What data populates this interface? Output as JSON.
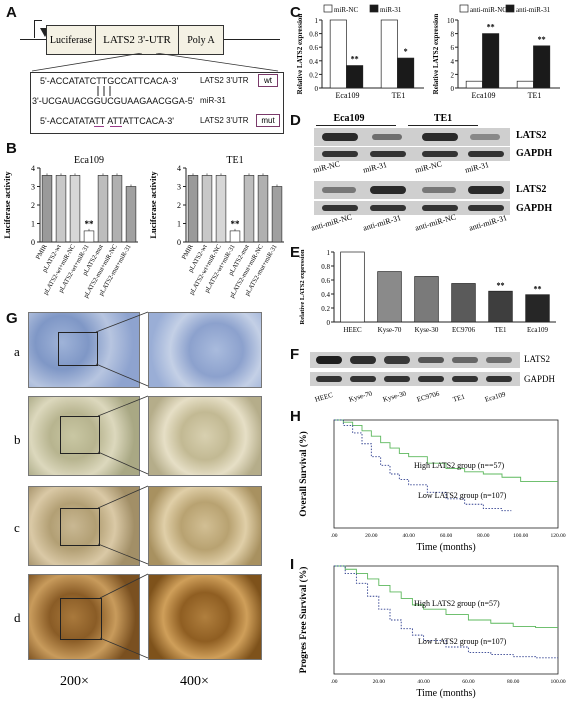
{
  "panels": {
    "A": {
      "letter": "A",
      "segments": [
        "Luciferase",
        "LATS2  3'-UTR",
        "Poly A"
      ],
      "seq_lines": [
        {
          "text": "5'-ACCATATCTTGCCATTCACA-3'",
          "tag": "LATS2 3'UTR",
          "box": "wt"
        },
        {
          "text": "3'-UCGAUACGGUCGUAAGAACGGA-5'",
          "tag": "miR-31",
          "box": ""
        },
        {
          "text": "5'-ACCATATATT ATTATTCACA-3'",
          "tag": "LATS2 3'UTR",
          "box": "mut"
        }
      ]
    },
    "B": {
      "letter": "B"
    },
    "C": {
      "letter": "C"
    },
    "D": {
      "letter": "D",
      "top_title_left": "Eca109",
      "top_title_right": "TE1",
      "top_labels": [
        "miR-NC",
        "miR-31",
        "miR-NC",
        "miR-31"
      ],
      "bottom_labels": [
        "anti-miR-NC",
        "anti-miR-31",
        "anti-miR-NC",
        "anti-miR-31"
      ],
      "bands": [
        "LATS2",
        "GAPDH",
        "LATS2",
        "GAPDH"
      ]
    },
    "E": {
      "letter": "E"
    },
    "F": {
      "letter": "F",
      "bands": [
        "LATS2",
        "GAPDH"
      ],
      "lanes": [
        "HEEC",
        "Kyse-70",
        "Kyse-30",
        "EC9706",
        "TE1",
        "Eca109"
      ]
    },
    "G": {
      "letter": "G",
      "rows": [
        "a",
        "b",
        "c",
        "d"
      ],
      "magnifications": [
        "200×",
        "400×"
      ]
    },
    "H": {
      "letter": "H"
    },
    "I": {
      "letter": "I"
    }
  },
  "colors": {
    "dark_bar": "#1a1a1a",
    "white_bar": "#ffffff",
    "grey_bar": "#808080",
    "green_curve": "#5cb85c",
    "navy_curve": "#2f3f8f"
  },
  "chart_data": [
    {
      "id": "B-Eca109",
      "type": "bar",
      "title": "Eca109",
      "ylabel": "Luciferase activity",
      "ylim": [
        0,
        4
      ],
      "yticks": [
        "0",
        "1",
        "2",
        "3",
        "4"
      ],
      "categories": [
        "PMIR",
        "pLATS2-wt",
        "pLATS2-wt+miR-NC",
        "pLATS2-wt+miR-31",
        "pLATS2-mut",
        "pLATS2-mut+miR-NC",
        "pLATS2-mut+miR-31"
      ],
      "values": [
        3.6,
        3.6,
        3.6,
        0.6,
        3.6,
        3.6,
        3.0
      ],
      "annotations": [
        {
          "category": "pLATS2-wt+miR-31",
          "text": "**"
        }
      ]
    },
    {
      "id": "B-TE1",
      "type": "bar",
      "title": "TE1",
      "ylabel": "Luciferase activity",
      "ylim": [
        0,
        4
      ],
      "yticks": [
        "0",
        "1",
        "2",
        "3",
        "4"
      ],
      "categories": [
        "PMIR",
        "pLATS2-wt",
        "pLATS2-wt+miR-NC",
        "pLATS2-wt+miR-31",
        "pLATS2-mut",
        "pLATS2-mut+miR-NC",
        "pLATS2-mut+miR-31"
      ],
      "values": [
        3.6,
        3.6,
        3.6,
        0.6,
        3.6,
        3.6,
        3.0
      ],
      "annotations": [
        {
          "category": "pLATS2-wt+miR-31",
          "text": "**"
        }
      ]
    },
    {
      "id": "C-left",
      "type": "bar",
      "ylabel": "Relative LATS2 expression",
      "ylim": [
        0,
        1.0
      ],
      "yticks": [
        "0",
        "0.2",
        "0.4",
        "0.6",
        "0.8",
        "1"
      ],
      "categories": [
        "Eca109",
        "TE1"
      ],
      "series": [
        {
          "name": "miR-NC",
          "values": [
            1.0,
            1.0
          ]
        },
        {
          "name": "miR-31",
          "values": [
            0.33,
            0.44
          ]
        }
      ],
      "annotations": [
        {
          "category": "Eca109",
          "text": "**"
        },
        {
          "category": "TE1",
          "text": "*"
        }
      ]
    },
    {
      "id": "C-right",
      "type": "bar",
      "ylabel": "Relative LATS2 expression",
      "ylim": [
        0,
        10
      ],
      "yticks": [
        "0",
        "2",
        "4",
        "6",
        "8",
        "10"
      ],
      "categories": [
        "Eca109",
        "TE1"
      ],
      "series": [
        {
          "name": "anti-miR-NC",
          "values": [
            1.0,
            1.0
          ]
        },
        {
          "name": "anti-miR-31",
          "values": [
            8.0,
            6.2
          ]
        }
      ],
      "annotations": [
        {
          "category": "Eca109",
          "text": "**"
        },
        {
          "category": "TE1",
          "text": "**"
        }
      ]
    },
    {
      "id": "E",
      "type": "bar",
      "ylabel": "Relative LATS2 expression",
      "ylim": [
        0,
        1
      ],
      "yticks": [
        "0",
        "0.2",
        "0.4",
        "0.6",
        "0.8",
        "1"
      ],
      "categories": [
        "HEEC",
        "Kyse-70",
        "Kyse-30",
        "EC9706",
        "TE1",
        "Eca109"
      ],
      "values": [
        1.0,
        0.72,
        0.65,
        0.55,
        0.44,
        0.39
      ],
      "annotations": [
        {
          "category": "TE1",
          "text": "**"
        },
        {
          "category": "Eca109",
          "text": "**"
        }
      ]
    },
    {
      "id": "H",
      "type": "line",
      "ylabel": "Overall Survival (%)",
      "xlabel": "Time (months)",
      "xticks": [
        ".00",
        "20.00",
        "40.00",
        "60.00",
        "80.00",
        "100.00",
        "120.00"
      ],
      "xlim": [
        0,
        120
      ],
      "ylim": [
        0,
        1
      ],
      "series": [
        {
          "name": "High LATS2 group (n==57)",
          "x": [
            0,
            5,
            10,
            15,
            20,
            25,
            30,
            35,
            40,
            50,
            60,
            70,
            80,
            90,
            100,
            110,
            120
          ],
          "y": [
            1.0,
            0.98,
            0.95,
            0.9,
            0.85,
            0.79,
            0.74,
            0.69,
            0.66,
            0.6,
            0.55,
            0.52,
            0.5,
            0.47,
            0.43,
            0.43,
            0.43
          ]
        },
        {
          "name": "Low LATS2 group (n=107)",
          "x": [
            0,
            5,
            10,
            15,
            20,
            25,
            30,
            35,
            40,
            50,
            60,
            70,
            80,
            90,
            95
          ],
          "y": [
            1.0,
            0.95,
            0.88,
            0.78,
            0.66,
            0.58,
            0.5,
            0.45,
            0.4,
            0.33,
            0.27,
            0.22,
            0.18,
            0.16,
            0.16
          ]
        }
      ]
    },
    {
      "id": "I",
      "type": "line",
      "ylabel": "Progres Free Survival (%)",
      "xlabel": "Time (months)",
      "xticks": [
        ".00",
        "20.00",
        "40.00",
        "60.00",
        "80.00",
        "100.00"
      ],
      "xlim": [
        0,
        100
      ],
      "ylim": [
        0,
        1
      ],
      "series": [
        {
          "name": "High LATS2 group (n=57)",
          "x": [
            0,
            5,
            10,
            15,
            20,
            25,
            30,
            35,
            40,
            50,
            60,
            70,
            80,
            90,
            100
          ],
          "y": [
            1.0,
            0.97,
            0.93,
            0.88,
            0.82,
            0.76,
            0.7,
            0.64,
            0.6,
            0.55,
            0.5,
            0.47,
            0.44,
            0.43,
            0.43
          ]
        },
        {
          "name": "Low LATS2 group (n=107)",
          "x": [
            0,
            5,
            10,
            15,
            20,
            25,
            30,
            35,
            40,
            50,
            60,
            70,
            80,
            90,
            100
          ],
          "y": [
            1.0,
            0.93,
            0.84,
            0.72,
            0.6,
            0.5,
            0.42,
            0.36,
            0.31,
            0.25,
            0.2,
            0.18,
            0.16,
            0.15,
            0.15
          ]
        }
      ]
    }
  ]
}
